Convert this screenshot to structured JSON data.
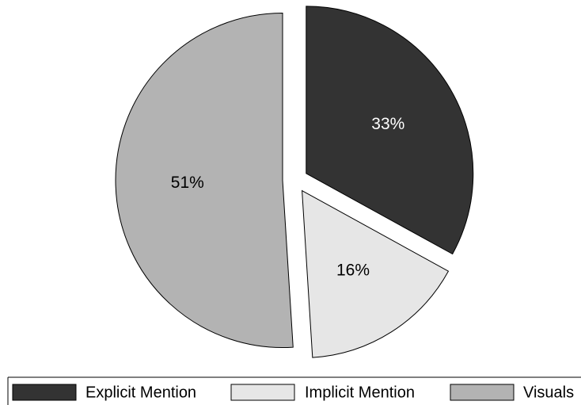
{
  "chart_data": {
    "type": "pie",
    "title": "",
    "slices": [
      {
        "label": "Explicit Mention",
        "value": 33,
        "display": "33%",
        "color": "#333333",
        "label_color": "#ffffff",
        "exploded": true
      },
      {
        "label": "Implicit Mention",
        "value": 16,
        "display": "16%",
        "color": "#e6e6e6",
        "label_color": "#000000",
        "exploded": true
      },
      {
        "label": "Visuals",
        "value": 51,
        "display": "51%",
        "color": "#b3b3b3",
        "label_color": "#000000",
        "exploded": true
      }
    ],
    "start_angle": "12 o'clock",
    "direction": "clockwise",
    "legend_position": "bottom"
  }
}
